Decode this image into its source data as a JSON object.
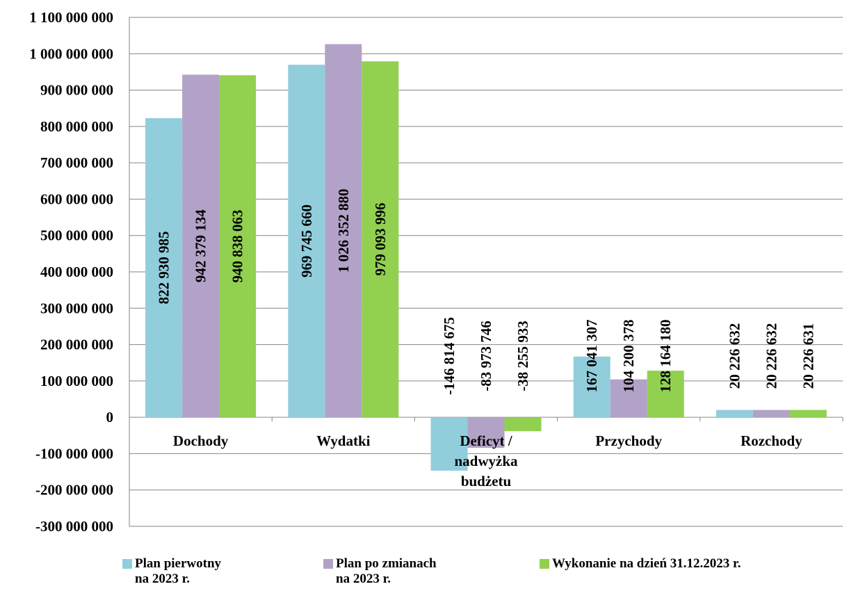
{
  "chart_data": {
    "type": "bar",
    "categories": [
      "Dochody",
      "Wydatki",
      "Deficyt /\nnadwyżka\nbudżetu",
      "Przychody",
      "Rozchody"
    ],
    "series": [
      {
        "name": "Plan pierwotny\nna 2023 r.",
        "color": "#92CDDC",
        "values": [
          822930985,
          969745660,
          -146814675,
          167041307,
          20226632
        ],
        "labels": [
          "822 930 985",
          "969 745 660",
          "-146 814 675",
          "167 041 307",
          "20 226 632"
        ]
      },
      {
        "name": "Plan po zmianach\nna 2023 r.",
        "color": "#B3A2C7",
        "values": [
          942379134,
          1026352880,
          -83973746,
          104200378,
          20226632
        ],
        "labels": [
          "942 379 134",
          "1 026 352 880",
          "-83 973 746",
          "104 200 378",
          "20 226 632"
        ]
      },
      {
        "name": "Wykonanie na dzień 31.12.2023 r.",
        "color": "#92D050",
        "values": [
          940838063,
          979093996,
          -38255933,
          128164180,
          20226631
        ],
        "labels": [
          "940 838 063",
          "979 093 996",
          "-38 255 933",
          "128 164 180",
          "20 226 631"
        ]
      }
    ],
    "ylim": [
      -300000000,
      1100000000
    ],
    "yticks": [
      1100000000,
      1000000000,
      900000000,
      800000000,
      700000000,
      600000000,
      500000000,
      400000000,
      300000000,
      200000000,
      100000000,
      0,
      -100000000,
      -200000000,
      -300000000
    ],
    "ytick_labels": [
      "1 100 000 000",
      "1 000 000 000",
      "900 000 000",
      "800 000 000",
      "700 000 000",
      "600 000 000",
      "500 000 000",
      "400 000 000",
      "300 000 000",
      "200 000 000",
      "100 000 000",
      "0",
      "-100 000 000",
      "-200 000 000",
      "-300 000 000"
    ],
    "grid": true,
    "legend_position": "bottom",
    "data_labels": "rotated-vertical"
  }
}
